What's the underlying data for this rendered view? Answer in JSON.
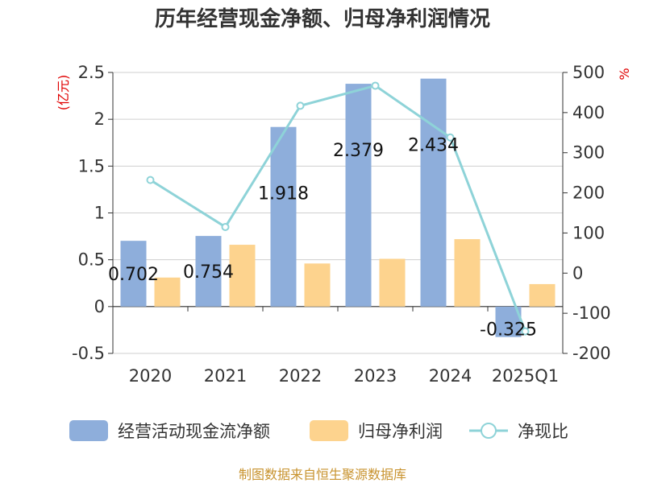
{
  "chart_data": {
    "type": "bar",
    "title": "历年经营现金净额、归母净利润情况",
    "categories": [
      "2020",
      "2021",
      "2022",
      "2023",
      "2024",
      "2025Q1"
    ],
    "y_left": {
      "unit": "(亿元)",
      "ylim": [
        -0.5,
        2.5
      ],
      "ticks": [
        "-0.5",
        "0",
        "0.5",
        "1",
        "1.5",
        "2",
        "2.5"
      ]
    },
    "y_right": {
      "unit": "%",
      "ylim": [
        -200,
        500
      ],
      "ticks": [
        "-200",
        "-100",
        "0",
        "100",
        "200",
        "300",
        "400",
        "500"
      ]
    },
    "series": [
      {
        "name": "经营活动现金流净额",
        "type": "bar",
        "axis": "left",
        "color": "#8eaedb",
        "values": [
          0.702,
          0.754,
          1.918,
          2.379,
          2.434,
          -0.325
        ],
        "labels": [
          "0.702",
          "0.754",
          "1.918",
          "2.379",
          "2.434",
          "-0.325"
        ]
      },
      {
        "name": "归母净利润",
        "type": "bar",
        "axis": "left",
        "color": "#fdd38e",
        "values": [
          0.31,
          0.66,
          0.46,
          0.51,
          0.72,
          0.24
        ]
      },
      {
        "name": "净现比",
        "type": "line",
        "axis": "right",
        "color": "#8ed3d8",
        "values": [
          232,
          115,
          417,
          467,
          338,
          -145
        ]
      }
    ],
    "grid": true,
    "legend_position": "bottom"
  },
  "footer": "制图数据来自恒生聚源数据库"
}
